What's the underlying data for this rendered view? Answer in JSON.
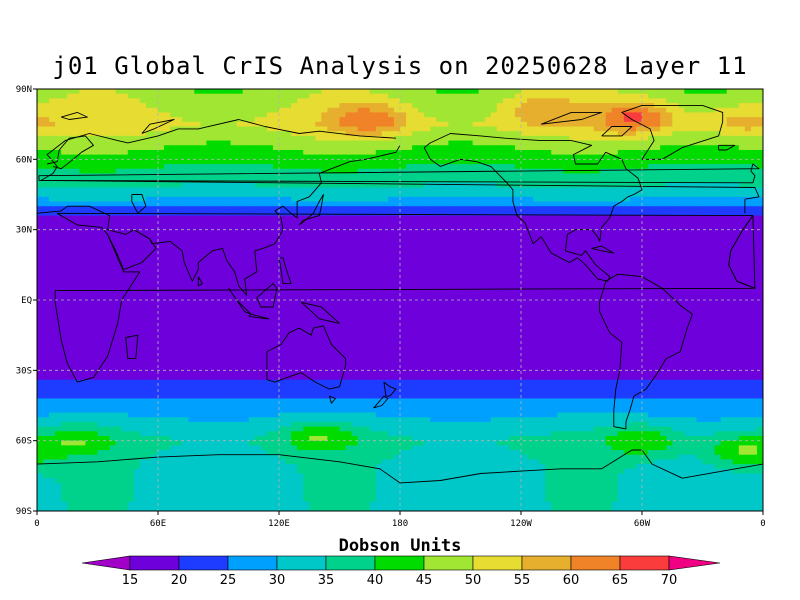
{
  "title": "j01 Global CrIS Analysis on 20250628 Layer 11",
  "colorbar": {
    "title": "Dobson Units",
    "levels": [
      "15",
      "20",
      "25",
      "30",
      "35",
      "40",
      "45",
      "50",
      "55",
      "60",
      "65",
      "70"
    ],
    "colors": [
      "#a000c8",
      "#6e00dc",
      "#1e3cff",
      "#00a0ff",
      "#00c8c8",
      "#00d28c",
      "#00dc00",
      "#a0e632",
      "#e6dc32",
      "#e6af2d",
      "#f08228",
      "#fa3c3c",
      "#f00082"
    ]
  },
  "axes": {
    "x_ticks": [
      "0",
      "60E",
      "120E",
      "180",
      "120W",
      "60W",
      "0"
    ],
    "y_ticks": [
      "90N",
      "60N",
      "30N",
      "EQ",
      "30S",
      "60S",
      "90S"
    ]
  },
  "map": {
    "field": "ozone column (Dobson Units)",
    "bands": [
      {
        "lat": 90,
        "value": 47
      },
      {
        "lat": 75,
        "value": 52
      },
      {
        "lat": 60,
        "value": 42
      },
      {
        "lat": 45,
        "value": 33
      },
      {
        "lat": 38,
        "value": 22
      },
      {
        "lat": 30,
        "value": 16
      },
      {
        "lat": 0,
        "value": 15
      },
      {
        "lat": -30,
        "value": 17
      },
      {
        "lat": -40,
        "value": 24
      },
      {
        "lat": -50,
        "value": 30
      },
      {
        "lat": -60,
        "value": 36
      },
      {
        "lat": -70,
        "value": 34
      },
      {
        "lat": -90,
        "value": 33
      }
    ],
    "highs": [
      {
        "lon": 165,
        "lat": 77,
        "value": 63
      },
      {
        "lon": 297,
        "lat": 78,
        "value": 66
      },
      {
        "lon": 250,
        "lat": 82,
        "value": 58
      },
      {
        "lon": 350,
        "lat": 76,
        "value": 58
      },
      {
        "lon": 20,
        "lat": -60,
        "value": 44
      },
      {
        "lon": 140,
        "lat": -58,
        "value": 44
      },
      {
        "lon": 300,
        "lat": -60,
        "value": 45
      },
      {
        "lon": 350,
        "lat": -65,
        "value": 46
      }
    ]
  }
}
